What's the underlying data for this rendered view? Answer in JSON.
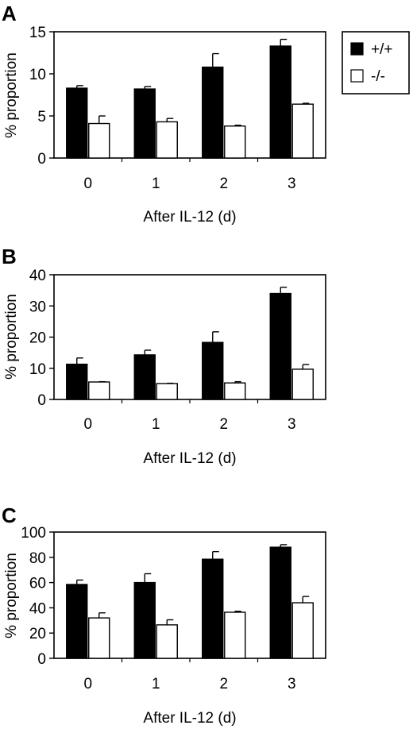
{
  "legend": [
    {
      "label": "+/+",
      "color": "#000000"
    },
    {
      "label": "-/-",
      "color": "#ffffff"
    }
  ],
  "chart_data": [
    {
      "panel": "A",
      "type": "bar",
      "xlabel": "After IL-12 (d)",
      "ylabel": "% proportion",
      "categories": [
        "0",
        "1",
        "2",
        "3"
      ],
      "ylim": [
        0,
        15
      ],
      "yticks": [
        0,
        5,
        10,
        15
      ],
      "series": [
        {
          "name": "+/+",
          "color": "#000000",
          "values": [
            8.3,
            8.2,
            10.8,
            13.3
          ],
          "errors": [
            0.3,
            0.3,
            1.6,
            0.8
          ]
        },
        {
          "name": "-/-",
          "color": "#ffffff",
          "values": [
            4.1,
            4.3,
            3.8,
            6.4
          ],
          "errors": [
            0.9,
            0.4,
            0.1,
            0.1
          ]
        }
      ]
    },
    {
      "panel": "B",
      "type": "bar",
      "xlabel": "After IL-12 (d)",
      "ylabel": "% proportion",
      "categories": [
        "0",
        "1",
        "2",
        "3"
      ],
      "ylim": [
        0,
        40
      ],
      "yticks": [
        0,
        10,
        20,
        30,
        40
      ],
      "series": [
        {
          "name": "+/+",
          "color": "#000000",
          "values": [
            11.3,
            14.3,
            18.3,
            34.0
          ],
          "errors": [
            2.0,
            1.5,
            3.4,
            2.0
          ]
        },
        {
          "name": "-/-",
          "color": "#ffffff",
          "values": [
            5.6,
            5.1,
            5.3,
            9.7
          ],
          "errors": [
            0.1,
            0.1,
            0.4,
            1.5
          ]
        }
      ]
    },
    {
      "panel": "C",
      "type": "bar",
      "xlabel": "After IL-12 (d)",
      "ylabel": "% proportion",
      "categories": [
        "0",
        "1",
        "2",
        "3"
      ],
      "ylim": [
        0,
        100
      ],
      "yticks": [
        0,
        20,
        40,
        60,
        80,
        100
      ],
      "series": [
        {
          "name": "+/+",
          "color": "#000000",
          "values": [
            58.5,
            60.0,
            78.5,
            88.0
          ],
          "errors": [
            3.5,
            7.0,
            6.0,
            2.0
          ]
        },
        {
          "name": "-/-",
          "color": "#ffffff",
          "values": [
            32.0,
            26.5,
            36.5,
            44.0
          ],
          "errors": [
            4.0,
            4.0,
            0.8,
            5.0
          ]
        }
      ]
    }
  ]
}
